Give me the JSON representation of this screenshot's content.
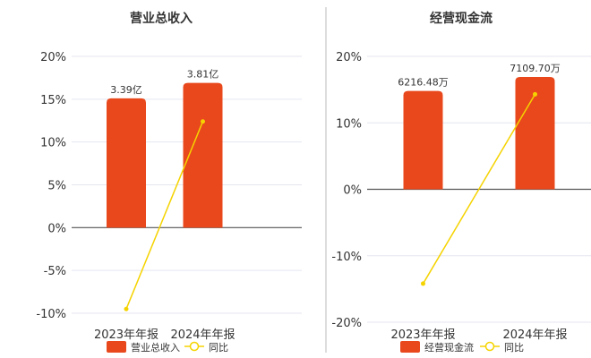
{
  "chart_data": [
    {
      "type": "bar",
      "title": "营业总收入",
      "categories": [
        "2023年年报",
        "2024年年报"
      ],
      "series": [
        {
          "name": "营业总收入",
          "type": "bar",
          "values": [
            15.1,
            16.9
          ],
          "labels": [
            "3.39亿",
            "3.81亿"
          ],
          "color": "#e8481c"
        },
        {
          "name": "同比",
          "type": "line",
          "values": [
            -9.5,
            12.4
          ],
          "color": "#f5d300"
        }
      ],
      "ylim": [
        -10,
        20
      ],
      "ticks": [
        "-10%",
        "-5%",
        "0%",
        "5%",
        "10%",
        "15%",
        "20%"
      ],
      "tick_values": [
        -10,
        -5,
        0,
        5,
        10,
        15,
        20
      ],
      "xlabel": "",
      "ylabel": "",
      "legend_position": "bottom"
    },
    {
      "type": "bar",
      "title": "经营现金流",
      "categories": [
        "2023年年报",
        "2024年年报"
      ],
      "series": [
        {
          "name": "经营现金流",
          "type": "bar",
          "values": [
            14.8,
            16.9
          ],
          "labels": [
            "6216.48万",
            "7109.70万"
          ],
          "color": "#e8481c"
        },
        {
          "name": "同比",
          "type": "line",
          "values": [
            -14.2,
            14.3
          ],
          "color": "#f5d300"
        }
      ],
      "ylim": [
        -20,
        20
      ],
      "ticks": [
        "-20%",
        "-10%",
        "0%",
        "10%",
        "20%"
      ],
      "tick_values": [
        -20,
        -10,
        0,
        10,
        20
      ],
      "xlabel": "",
      "ylabel": "",
      "legend_position": "bottom"
    }
  ]
}
